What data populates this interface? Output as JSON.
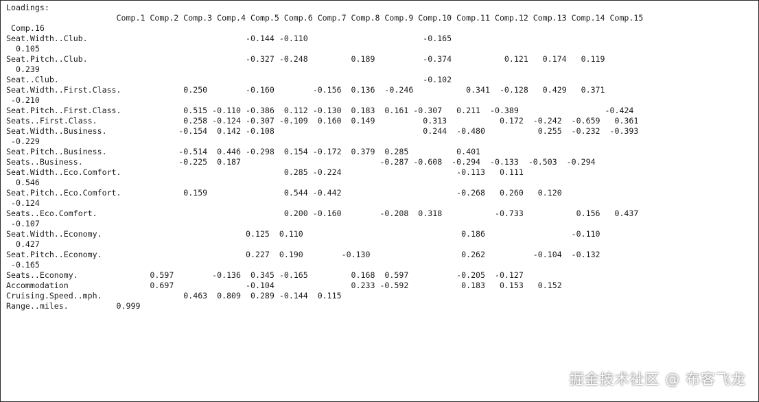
{
  "console": {
    "lines": [
      "Loadings:",
      "                       Comp.1 Comp.2 Comp.3 Comp.4 Comp.5 Comp.6 Comp.7 Comp.8 Comp.9 Comp.10 Comp.11 Comp.12 Comp.13 Comp.14 Comp.15",
      " Comp.16",
      "Seat.Width..Club.                                 -0.144 -0.110                        -0.165",
      "  0.105",
      "Seat.Pitch..Club.                                 -0.327 -0.248         0.189          -0.374           0.121   0.174   0.119",
      "  0.239",
      "Seat..Club.                                                                            -0.102",
      "",
      "Seat.Width..First.Class.             0.250        -0.160        -0.156  0.136  -0.246           0.341  -0.128   0.429   0.371",
      " -0.210",
      "Seat.Pitch..First.Class.             0.515 -0.110 -0.386  0.112 -0.130  0.183  0.161 -0.307   0.211  -0.389                  -0.424",
      "",
      "Seats..First.Class.                  0.258 -0.124 -0.307 -0.109  0.160  0.149          0.313           0.172  -0.242  -0.659   0.361",
      "",
      "Seat.Width..Business.               -0.154  0.142 -0.108                               0.244  -0.480           0.255  -0.232  -0.393",
      " -0.229",
      "Seat.Pitch..Business.               -0.514  0.446 -0.298  0.154 -0.172  0.379  0.285          0.401",
      "",
      "Seats..Business.                    -0.225  0.187                             -0.287 -0.608  -0.294  -0.133  -0.503  -0.294",
      "",
      "Seat.Width..Eco.Comfort.                                  0.285 -0.224                        -0.113   0.111",
      "  0.546",
      "Seat.Pitch..Eco.Comfort.             0.159                0.544 -0.442                        -0.268   0.260   0.120",
      " -0.124",
      "Seats..Eco.Comfort.                                       0.200 -0.160        -0.208  0.318           -0.733           0.156   0.437",
      " -0.107",
      "Seat.Width..Economy.                              0.125  0.110                                 0.186                  -0.110",
      "  0.427",
      "Seat.Pitch..Economy.                              0.227  0.190        -0.130                   0.262          -0.104  -0.132",
      " -0.165",
      "Seats..Economy.               0.597        -0.136  0.345 -0.165         0.168  0.597          -0.205  -0.127",
      "",
      "Accommodation                 0.697               -0.104                0.233 -0.592           0.183   0.153   0.152",
      "",
      "Cruising.Speed..mph.                 0.463  0.809  0.289 -0.144  0.115",
      "",
      "Range..miles.          0.999"
    ]
  },
  "watermark": "掘金技术社区 @ 布客飞龙"
}
